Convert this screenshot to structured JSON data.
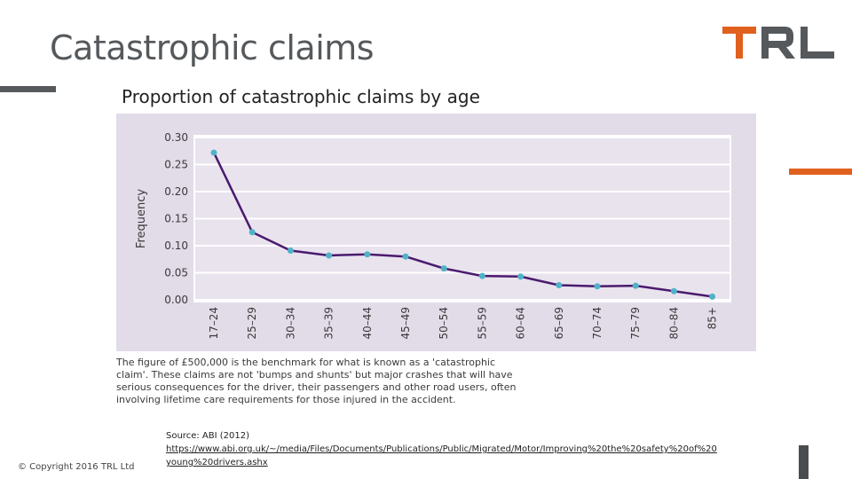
{
  "slide": {
    "title": "Catastrophic claims",
    "subtitle": "Proportion of catastrophic claims by age",
    "caption": "The figure of £500,000 is the benchmark for what is known as a 'catastrophic claim'. These claims are not 'bumps and shunts' but major crashes that will have serious consequences for the driver, their passengers and other road users, often involving lifetime care requirements for those injured in the accident.",
    "copyright": "© Copyright 2016 TRL Ltd",
    "source_label": "Source: ABI (2012)",
    "source_url": "https://www.abi.org.uk/~/media/Files/Documents/Publications/Public/Migrated/Motor/Improving%20the%20safety%20of%20young%20drivers.ashx",
    "logo_text": "TRL"
  },
  "colors": {
    "accent_orange": "#e0601e",
    "accent_grey": "#575a5d",
    "panel_bg": "#e2dbe8",
    "line": "#4b1a6e",
    "marker": "#4fb3c8"
  },
  "chart_data": {
    "type": "line",
    "title": "",
    "xlabel": "",
    "ylabel": "Frequency",
    "categories": [
      "17–24",
      "25–29",
      "30–34",
      "35–39",
      "40–44",
      "45–49",
      "50–54",
      "55–59",
      "60–64",
      "65–69",
      "70–74",
      "75–79",
      "80–84",
      "85+"
    ],
    "series": [
      {
        "values": [
          0.272,
          0.125,
          0.091,
          0.082,
          0.084,
          0.08,
          0.058,
          0.044,
          0.043,
          0.027,
          0.025,
          0.026,
          0.016,
          0.006
        ]
      }
    ],
    "yticks": [
      "0.00",
      "0.05",
      "0.10",
      "0.15",
      "0.20",
      "0.25",
      "0.30"
    ],
    "ylim": [
      0,
      0.3
    ],
    "grid": true,
    "legend": "none"
  }
}
